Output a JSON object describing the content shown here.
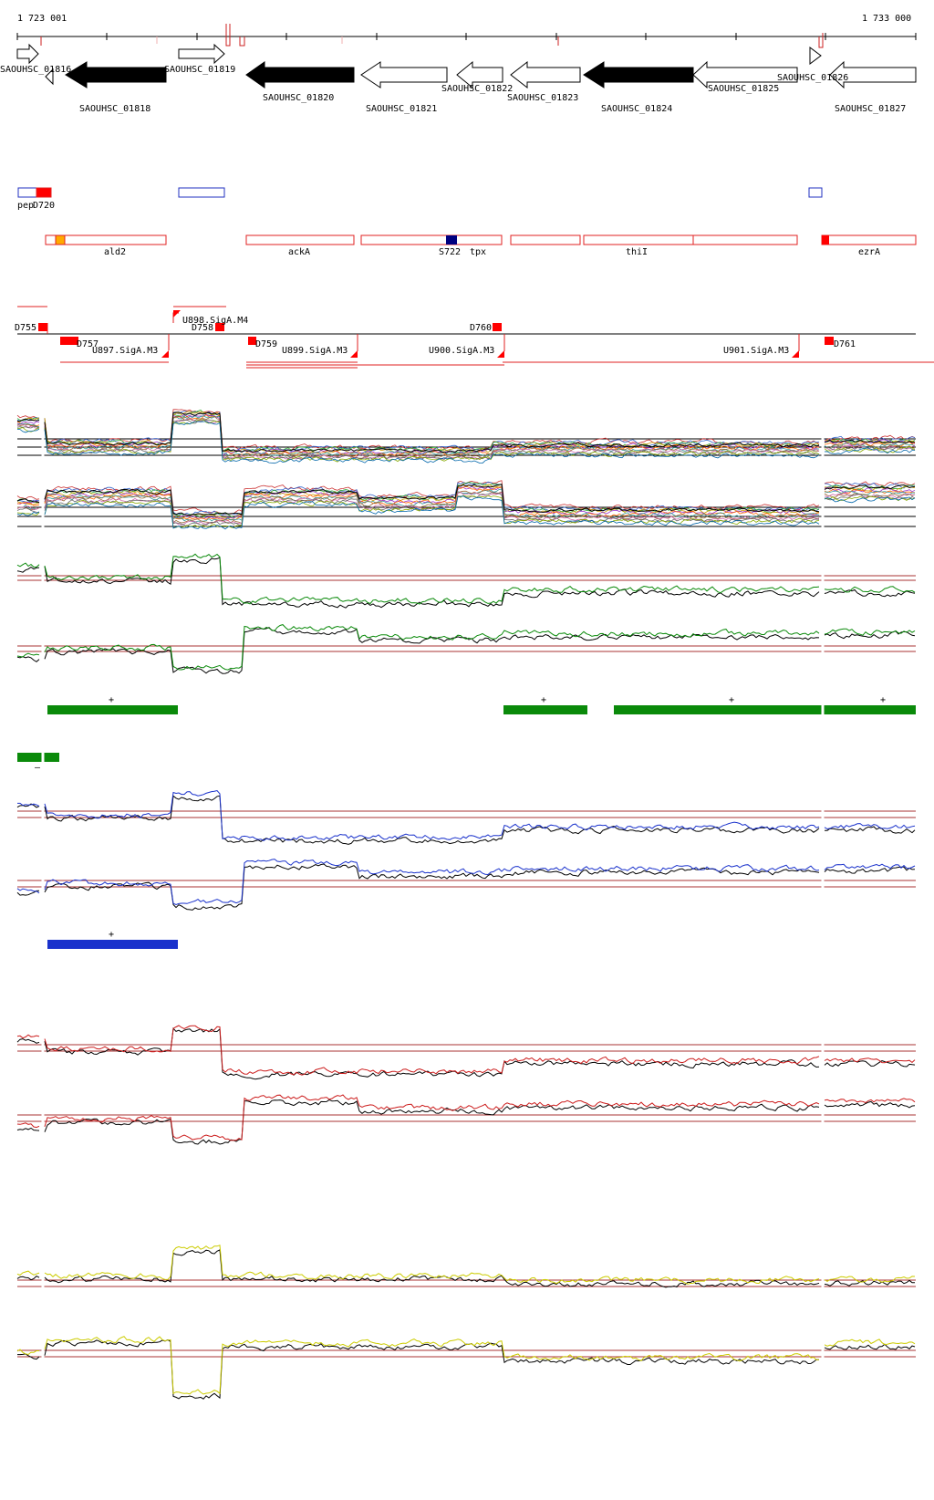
{
  "ruler": {
    "start_label": "1 723 001",
    "end_label": "1 733 000"
  },
  "genes": [
    {
      "label": "SAOUHSC_01816"
    },
    {
      "label": "SAOUHSC_01818"
    },
    {
      "label": "SAOUHSC_01819"
    },
    {
      "label": "SAOUHSC_01820"
    },
    {
      "label": "SAOUHSC_01821"
    },
    {
      "label": "SAOUHSC_01822"
    },
    {
      "label": "SAOUHSC_01823"
    },
    {
      "label": "SAOUHSC_01824"
    },
    {
      "label": "SAOUHSC_01825"
    },
    {
      "label": "SAOUHSC_01826"
    },
    {
      "label": "SAOUHSC_01827"
    }
  ],
  "small_features": {
    "pep_label": "pep",
    "d720_label": "D720"
  },
  "annotations": [
    {
      "label": "ald2"
    },
    {
      "label": "ackA"
    },
    {
      "label": "S722"
    },
    {
      "label": "tpx"
    },
    {
      "label": "thiI"
    },
    {
      "label": "ezrA"
    }
  ],
  "regulatory": [
    {
      "label": "D755"
    },
    {
      "label": "D757"
    },
    {
      "label": "U897.SigA.M3"
    },
    {
      "label": "U898.SigA.M4"
    },
    {
      "label": "D758"
    },
    {
      "label": "D759"
    },
    {
      "label": "U899.SigA.M3"
    },
    {
      "label": "U900.SigA.M3"
    },
    {
      "label": "D760"
    },
    {
      "label": "U901.SigA.M3"
    },
    {
      "label": "D761"
    }
  ],
  "segments": {
    "plus": "+",
    "minus": "–"
  },
  "colors": {
    "ruler_mark": "#cc2222",
    "annotation_outline": "#e02020",
    "annotation_fill": "#ff0000",
    "orange": "#ffaa00",
    "navy": "#000080",
    "blue_outline": "#2030c0",
    "green": "#0a8a0a",
    "blue": "#1a32cc",
    "red": "#cc1c1c",
    "yellow": "#cccc00",
    "baseline": "#aa3333"
  }
}
